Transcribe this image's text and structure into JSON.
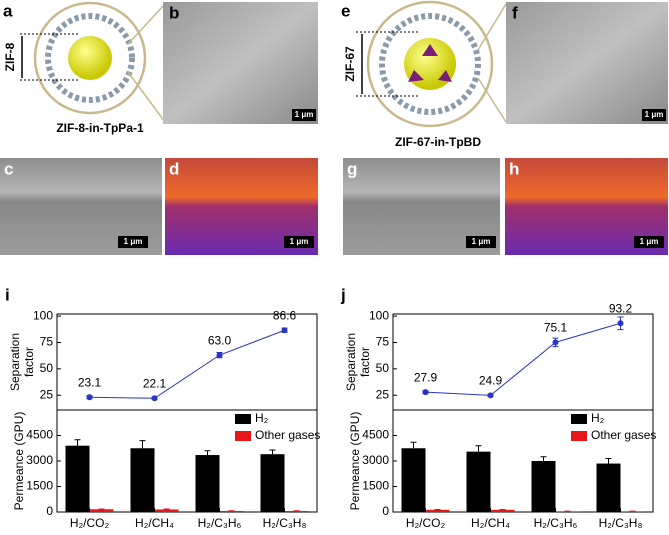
{
  "panels": {
    "a": {
      "label": "a",
      "dimension": "ZIF-8",
      "caption": "ZIF-8-in-TpPa-1"
    },
    "b": {
      "label": "b",
      "scale": "1 μm"
    },
    "c": {
      "label": "c",
      "scale": "1 μm"
    },
    "d": {
      "label": "d",
      "scale": "1 μm"
    },
    "e": {
      "label": "e",
      "dimension": "ZIF-67",
      "caption": "ZIF-67-in-TpBD"
    },
    "f": {
      "label": "f",
      "scale": "1 μm"
    },
    "g": {
      "label": "g",
      "scale": "1 μm"
    },
    "h": {
      "label": "h",
      "scale": "1 μm"
    }
  },
  "chart_data": [
    {
      "type": "combo",
      "panel": "i",
      "categories": [
        "H₂/CO₂",
        "H₂/CH₄",
        "H₂/C₃H₆",
        "H₂/C₃H₈"
      ],
      "line": {
        "ylabel": [
          "Separation",
          "factor"
        ],
        "ylim": [
          11,
          102
        ],
        "yticks": [
          25,
          50,
          75,
          100
        ],
        "color": "#2a35c8",
        "values": [
          23.1,
          22.1,
          63.0,
          86.6
        ],
        "value_labels": [
          "23.1",
          "22.1",
          "63.0",
          "86.6"
        ],
        "errors": [
          1.5,
          1,
          2.5,
          2
        ]
      },
      "bar": {
        "ylabel": "Permeance (GPU)",
        "ylim": [
          0,
          6000
        ],
        "yticks": [
          0,
          1500,
          3000,
          4500
        ],
        "series": [
          {
            "name": "H₂",
            "color": "#000000",
            "values": [
              3900,
              3750,
              3350,
              3400
            ],
            "errors": [
              350,
              450,
              250,
              250
            ]
          },
          {
            "name": "Other gases",
            "color": "#e8161b",
            "values": [
              160,
              150,
              60,
              60
            ],
            "errors": [
              20,
              30,
              10,
              10
            ]
          }
        ]
      }
    },
    {
      "type": "combo",
      "panel": "j",
      "categories": [
        "H₂/CO₂",
        "H₂/CH₄",
        "H₂/C₃H₆",
        "H₂/C₃H₈"
      ],
      "line": {
        "ylabel": [
          "Separation",
          "factor"
        ],
        "ylim": [
          11,
          102
        ],
        "yticks": [
          25,
          50,
          75,
          100
        ],
        "color": "#2a35c8",
        "values": [
          27.9,
          24.9,
          75.1,
          93.2
        ],
        "value_labels": [
          "27.9",
          "24.9",
          "75.1",
          "93.2"
        ],
        "errors": [
          1.5,
          1,
          4,
          6
        ]
      },
      "bar": {
        "ylabel": "Permeance (GPU)",
        "ylim": [
          0,
          6000
        ],
        "yticks": [
          0,
          1500,
          3000,
          4500
        ],
        "series": [
          {
            "name": "H₂",
            "color": "#000000",
            "values": [
              3750,
              3550,
              3000,
              2850
            ],
            "errors": [
              350,
              350,
              250,
              300
            ]
          },
          {
            "name": "Other gases",
            "color": "#e8161b",
            "values": [
              130,
              130,
              40,
              40
            ],
            "errors": [
              20,
              20,
              10,
              10
            ]
          }
        ]
      }
    }
  ]
}
